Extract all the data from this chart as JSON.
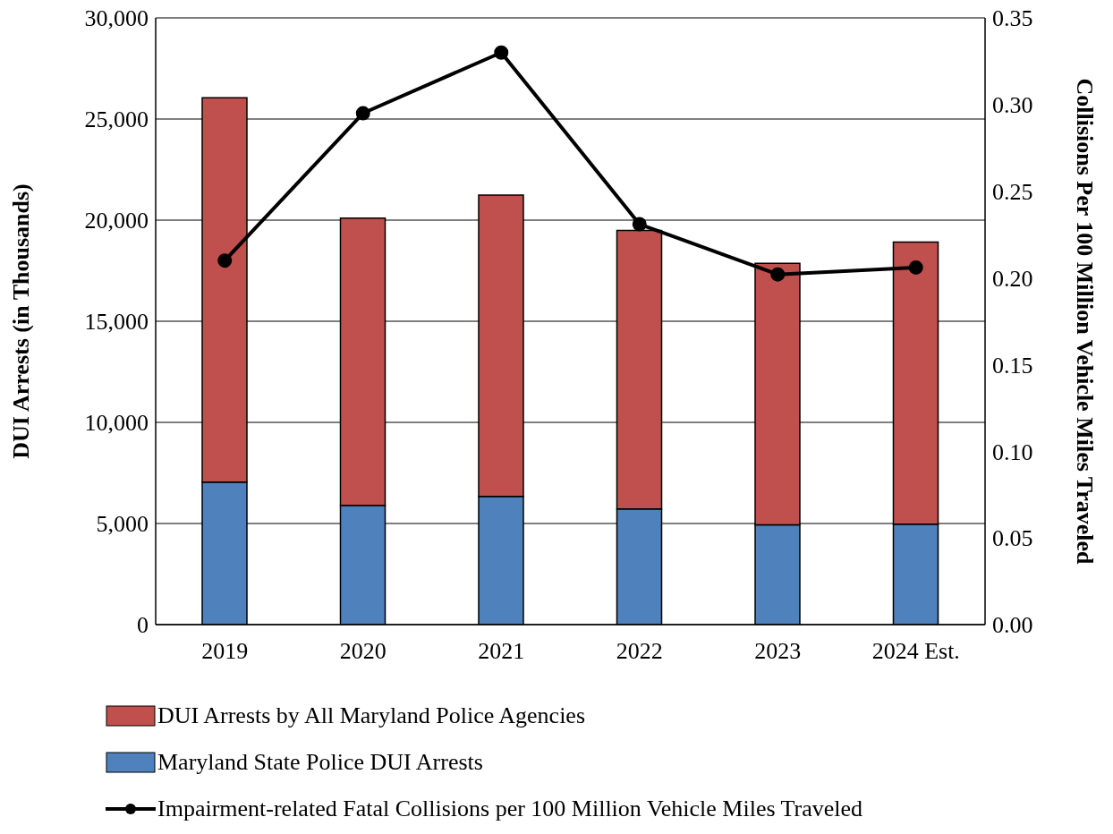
{
  "chart_data": {
    "type": "bar",
    "stacked": true,
    "ylabel": "DUI Arrests (in Thousands)",
    "y2label": "Collisions Per 100 Million Vehicle Miles Traveled",
    "categories": [
      "2019",
      "2020",
      "2021",
      "2022",
      "2023",
      "2024 Est."
    ],
    "series": [
      {
        "name": "Maryland State Police DUI Arrests",
        "color": "#4f81bd",
        "values": [
          7050,
          5900,
          6340,
          5720,
          4930,
          4970
        ]
      },
      {
        "name": "DUI Arrests by All Maryland Police Agencies",
        "color": "#c0504d",
        "values": [
          19000,
          14200,
          14900,
          13770,
          12930,
          13950
        ]
      },
      {
        "name": "Impairment-related Fatal Collisions per 100 Million Vehicle Miles Traveled",
        "type": "line",
        "axis": "y2",
        "color": "#000000",
        "values": [
          0.21,
          0.295,
          0.33,
          0.231,
          0.202,
          0.206
        ]
      }
    ],
    "ylim": [
      0,
      30000
    ],
    "yticks": [
      {
        "value": 0,
        "label": "0"
      },
      {
        "value": 5000,
        "label": "5,000"
      },
      {
        "value": 10000,
        "label": "10,000"
      },
      {
        "value": 15000,
        "label": "15,000"
      },
      {
        "value": 20000,
        "label": "20,000"
      },
      {
        "value": 25000,
        "label": "25,000"
      },
      {
        "value": 30000,
        "label": "30,000"
      }
    ],
    "y2lim": [
      0,
      0.35
    ],
    "y2ticks": [
      {
        "value": 0,
        "label": "0.00"
      },
      {
        "value": 0.05,
        "label": "0.05"
      },
      {
        "value": 0.1,
        "label": "0.10"
      },
      {
        "value": 0.15,
        "label": "0.15"
      },
      {
        "value": 0.2,
        "label": "0.20"
      },
      {
        "value": 0.25,
        "label": "0.25"
      },
      {
        "value": 0.3,
        "label": "0.30"
      },
      {
        "value": 0.35,
        "label": "0.35"
      }
    ],
    "grid": "y",
    "legend": "bottom",
    "marker": "circle",
    "line_style": "solid"
  }
}
